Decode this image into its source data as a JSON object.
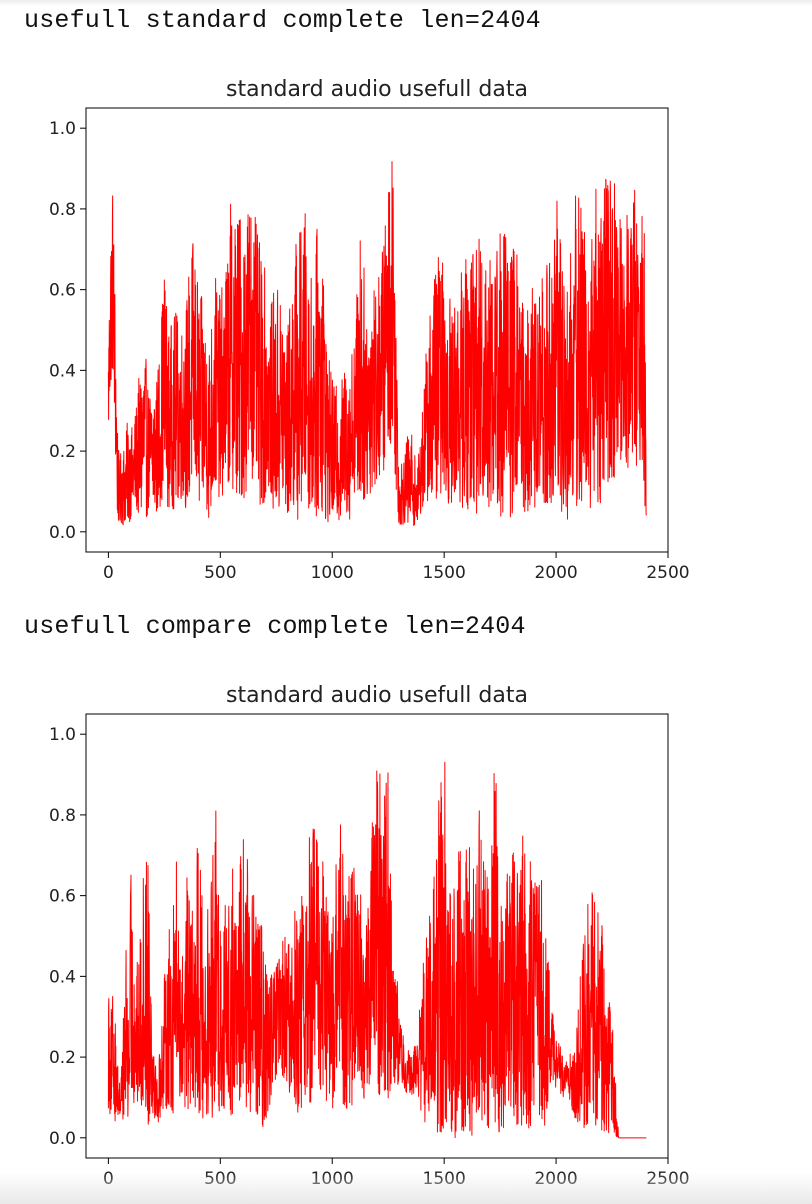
{
  "outputs": [
    {
      "text": "usefull standard complete len=2404"
    },
    {
      "text": "usefull compare complete len=2404"
    }
  ],
  "chart_data": [
    {
      "type": "line",
      "title": "standard audio usefull data",
      "color": "#ff0000",
      "xlabel": "",
      "ylabel": "",
      "xlim": [
        -100,
        2500
      ],
      "ylim": [
        -0.05,
        1.05
      ],
      "xticks": [
        0,
        500,
        1000,
        1500,
        2000,
        2500
      ],
      "yticks": [
        0.0,
        0.2,
        0.4,
        0.6,
        0.8,
        1.0
      ],
      "xtick_labels": [
        "0",
        "500",
        "1000",
        "1500",
        "2000",
        "2500"
      ],
      "ytick_labels": [
        "0.0",
        "0.2",
        "0.4",
        "0.6",
        "0.8",
        "1.0"
      ],
      "n_points": 2404,
      "series": [
        {
          "x": [
            0,
            10,
            20,
            30,
            40,
            50,
            60,
            70,
            80,
            90,
            100,
            120,
            140,
            160,
            180,
            200,
            220,
            250,
            270,
            300,
            330,
            350,
            380,
            400,
            430,
            450,
            480,
            500,
            530,
            550,
            580,
            600,
            630,
            650,
            680,
            700,
            720,
            750,
            780,
            800,
            830,
            850,
            880,
            900,
            920,
            950,
            980,
            1000,
            1030,
            1050,
            1080,
            1100,
            1130,
            1150,
            1180,
            1200,
            1230,
            1250,
            1270,
            1290,
            1300,
            1320,
            1350,
            1380,
            1400,
            1420,
            1450,
            1480,
            1500,
            1530,
            1550,
            1580,
            1600,
            1630,
            1650,
            1680,
            1700,
            1730,
            1750,
            1780,
            1800,
            1830,
            1850,
            1880,
            1900,
            1930,
            1950,
            1980,
            2000,
            2030,
            2050,
            2080,
            2100,
            2130,
            2150,
            2180,
            2200,
            2230,
            2250,
            2280,
            2300,
            2330,
            2350,
            2380,
            2400
          ],
          "y_high": [
            0.48,
            0.77,
            0.88,
            0.61,
            0.29,
            0.15,
            0.25,
            0.22,
            0.25,
            0.3,
            0.25,
            0.3,
            0.4,
            0.48,
            0.35,
            0.38,
            0.4,
            0.67,
            0.5,
            0.55,
            0.52,
            0.6,
            0.75,
            0.62,
            0.55,
            0.48,
            0.65,
            0.58,
            0.7,
            0.85,
            0.82,
            0.78,
            0.87,
            0.8,
            0.7,
            0.65,
            0.55,
            0.62,
            0.6,
            0.5,
            0.72,
            0.75,
            0.8,
            0.62,
            0.7,
            0.83,
            0.45,
            0.38,
            0.35,
            0.4,
            0.45,
            0.5,
            0.82,
            0.55,
            0.7,
            0.6,
            0.75,
            0.88,
            1.0,
            0.45,
            0.15,
            0.2,
            0.27,
            0.15,
            0.3,
            0.45,
            0.66,
            0.7,
            0.65,
            0.6,
            0.57,
            0.65,
            0.7,
            0.75,
            0.72,
            0.78,
            0.75,
            0.7,
            0.78,
            0.77,
            0.72,
            0.7,
            0.6,
            0.55,
            0.65,
            0.6,
            0.7,
            0.75,
            0.85,
            0.7,
            0.65,
            0.8,
            0.92,
            0.75,
            0.7,
            0.9,
            0.85,
            0.91,
            0.88,
            0.85,
            0.8,
            0.86,
            0.87,
            0.8,
            0.74
          ],
          "y_low": [
            0.22,
            0.35,
            0.4,
            0.2,
            0.03,
            0.01,
            0.02,
            0.01,
            0.03,
            0.02,
            0.03,
            0.05,
            0.03,
            0.02,
            0.05,
            0.03,
            0.04,
            0.1,
            0.05,
            0.06,
            0.08,
            0.05,
            0.12,
            0.04,
            0.08,
            0.02,
            0.1,
            0.08,
            0.1,
            0.12,
            0.05,
            0.08,
            0.1,
            0.15,
            0.05,
            0.08,
            0.1,
            0.02,
            0.05,
            0.03,
            0.05,
            0.02,
            0.08,
            0.05,
            0.03,
            0.05,
            0.02,
            0.03,
            0.02,
            0.05,
            0.03,
            0.1,
            0.05,
            0.08,
            0.1,
            0.12,
            0.15,
            0.18,
            0.25,
            0.05,
            0.01,
            0.02,
            0.01,
            0.02,
            0.05,
            0.08,
            0.06,
            0.1,
            0.08,
            0.05,
            0.1,
            0.06,
            0.05,
            0.08,
            0.03,
            0.06,
            0.05,
            0.08,
            0.02,
            0.05,
            0.03,
            0.1,
            0.05,
            0.04,
            0.02,
            0.08,
            0.05,
            0.03,
            0.06,
            0.04,
            0.02,
            0.08,
            0.05,
            0.1,
            0.05,
            0.08,
            0.06,
            0.1,
            0.12,
            0.15,
            0.18,
            0.15,
            0.17,
            0.15,
            0.04
          ]
        }
      ]
    },
    {
      "type": "line",
      "title": "standard audio usefull data",
      "color": "#ff0000",
      "xlabel": "",
      "ylabel": "",
      "xlim": [
        -100,
        2500
      ],
      "ylim": [
        -0.05,
        1.05
      ],
      "xticks": [
        0,
        500,
        1000,
        1500,
        2000,
        2500
      ],
      "yticks": [
        0.0,
        0.2,
        0.4,
        0.6,
        0.8,
        1.0
      ],
      "xtick_labels": [
        "0",
        "500",
        "1000",
        "1500",
        "2000",
        "2500"
      ],
      "ytick_labels": [
        "0.0",
        "0.2",
        "0.4",
        "0.6",
        "0.8",
        "1.0"
      ],
      "n_points": 2404,
      "series": [
        {
          "x": [
            0,
            10,
            20,
            30,
            40,
            50,
            60,
            70,
            80,
            90,
            100,
            120,
            140,
            160,
            180,
            200,
            220,
            250,
            270,
            300,
            330,
            350,
            380,
            400,
            430,
            450,
            480,
            500,
            530,
            550,
            580,
            600,
            630,
            650,
            680,
            700,
            720,
            750,
            780,
            800,
            830,
            850,
            880,
            900,
            920,
            950,
            980,
            1000,
            1030,
            1050,
            1080,
            1100,
            1130,
            1150,
            1180,
            1200,
            1230,
            1250,
            1270,
            1290,
            1300,
            1320,
            1350,
            1380,
            1400,
            1420,
            1450,
            1480,
            1500,
            1530,
            1550,
            1580,
            1600,
            1630,
            1650,
            1680,
            1700,
            1730,
            1750,
            1780,
            1800,
            1830,
            1850,
            1880,
            1900,
            1930,
            1950,
            1980,
            2000,
            2030,
            2050,
            2080,
            2100,
            2130,
            2150,
            2180,
            2200,
            2230,
            2250,
            2280,
            2300,
            2330,
            2350,
            2380,
            2400
          ],
          "y_high": [
            0.48,
            0.3,
            0.37,
            0.3,
            0.2,
            0.15,
            0.2,
            0.35,
            0.48,
            0.3,
            0.69,
            0.4,
            0.48,
            0.72,
            0.74,
            0.3,
            0.15,
            0.4,
            0.5,
            0.75,
            0.45,
            0.65,
            0.55,
            0.8,
            0.5,
            0.6,
            0.81,
            0.55,
            0.6,
            0.7,
            0.58,
            0.8,
            0.65,
            0.6,
            0.55,
            0.45,
            0.4,
            0.45,
            0.5,
            0.5,
            0.55,
            0.65,
            0.55,
            0.8,
            0.8,
            0.75,
            0.6,
            0.55,
            0.8,
            0.75,
            0.65,
            0.7,
            0.6,
            0.55,
            0.8,
            0.95,
            0.9,
            0.95,
            0.6,
            0.4,
            0.3,
            0.25,
            0.2,
            0.25,
            0.4,
            0.5,
            0.6,
            0.9,
            0.98,
            0.6,
            0.75,
            0.7,
            0.8,
            0.7,
            0.85,
            0.7,
            0.65,
            1.0,
            0.6,
            0.7,
            0.75,
            0.72,
            0.75,
            0.7,
            0.65,
            0.7,
            0.55,
            0.35,
            0.25,
            0.22,
            0.2,
            0.22,
            0.4,
            0.55,
            0.62,
            0.59,
            0.55,
            0.45,
            0.3,
            0.0,
            0.0,
            0.0,
            0.0,
            0.0,
            0.0
          ],
          "y_low": [
            0.07,
            0.05,
            0.08,
            0.04,
            0.06,
            0.03,
            0.06,
            0.03,
            0.08,
            0.03,
            0.05,
            0.1,
            0.05,
            0.06,
            0.03,
            0.06,
            0.03,
            0.08,
            0.06,
            0.05,
            0.1,
            0.05,
            0.08,
            0.04,
            0.05,
            0.0,
            0.1,
            0.05,
            0.08,
            0.02,
            0.1,
            0.05,
            0.06,
            0.08,
            0.03,
            0.0,
            0.08,
            0.1,
            0.12,
            0.1,
            0.08,
            0.05,
            0.1,
            0.08,
            0.12,
            0.1,
            0.08,
            0.06,
            0.1,
            0.08,
            0.05,
            0.12,
            0.1,
            0.08,
            0.15,
            0.1,
            0.12,
            0.08,
            0.15,
            0.12,
            0.15,
            0.12,
            0.1,
            0.12,
            0.05,
            0.02,
            0.04,
            0.0,
            0.02,
            0.01,
            0.0,
            0.02,
            0.01,
            0.0,
            0.02,
            0.05,
            0.01,
            0.03,
            0.0,
            0.02,
            0.05,
            0.01,
            0.03,
            0.02,
            0.0,
            0.05,
            0.03,
            0.15,
            0.12,
            0.1,
            0.12,
            0.05,
            0.03,
            0.01,
            0.02,
            0.01,
            0.01,
            0.01,
            0.01,
            0.0,
            0.0,
            0.0,
            0.0,
            0.0,
            0.0
          ]
        }
      ]
    }
  ]
}
